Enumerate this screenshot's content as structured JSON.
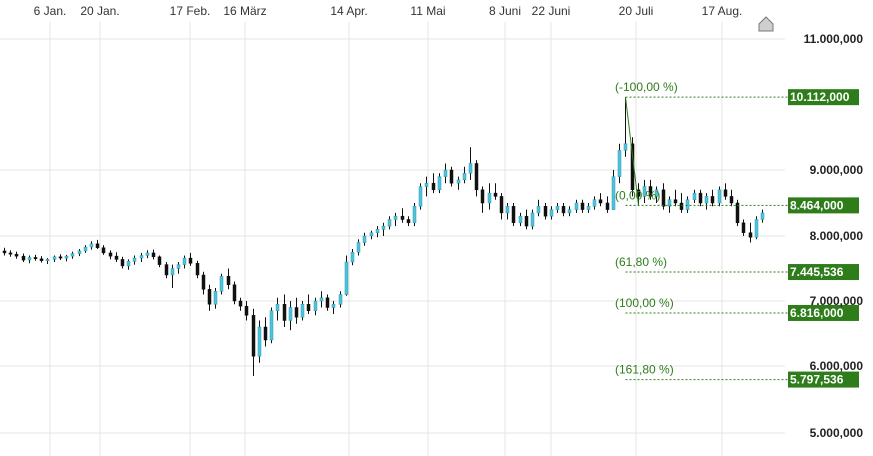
{
  "chart_data": {
    "type": "candlestick",
    "title": "",
    "xlabel": "",
    "ylabel": "",
    "x_tick_labels": [
      "6 Jan.",
      "20 Jan.",
      "17 Feb.",
      "16 März",
      "14 Apr.",
      "11 Mai",
      "8 Juni",
      "22 Juni",
      "20 Juli",
      "17 Aug."
    ],
    "y_tick_labels": [
      "11.000,000",
      "9.000,000",
      "8.000,000",
      "7.000,000",
      "6.000,000",
      "5.000,000"
    ],
    "y_tick_values": [
      11000,
      9000,
      8000,
      7000,
      6000,
      5000
    ],
    "ylim": [
      4850,
      11250
    ],
    "grid": true,
    "colors": {
      "up": "#4fc3dc",
      "down": "#111111",
      "fib": "#2e7d1a",
      "grid": "#e4e4e4"
    },
    "fib_levels": [
      {
        "label": "(-100,00 %)",
        "value_label": "10.112,000",
        "value": 10112
      },
      {
        "label": "(0,00 %)",
        "value_label": "8.464,000",
        "value": 8464
      },
      {
        "label": "(61,80 %)",
        "value_label": "7.445,536",
        "value": 7445.536
      },
      {
        "label": "(100,00 %)",
        "value_label": "6.816,000",
        "value": 6816
      },
      {
        "label": "(161,80 %)",
        "value_label": "5.797,536",
        "value": 5797.536
      }
    ],
    "fib_line": {
      "from": 10112,
      "to": 8464
    },
    "candles": [
      [
        7770,
        7820,
        7700,
        7740
      ],
      [
        7740,
        7780,
        7680,
        7720
      ],
      [
        7720,
        7760,
        7650,
        7690
      ],
      [
        7690,
        7730,
        7600,
        7630
      ],
      [
        7630,
        7700,
        7580,
        7670
      ],
      [
        7670,
        7710,
        7620,
        7650
      ],
      [
        7650,
        7690,
        7590,
        7620
      ],
      [
        7620,
        7660,
        7570,
        7640
      ],
      [
        7640,
        7700,
        7600,
        7680
      ],
      [
        7680,
        7720,
        7630,
        7660
      ],
      [
        7660,
        7710,
        7610,
        7690
      ],
      [
        7690,
        7760,
        7650,
        7730
      ],
      [
        7730,
        7800,
        7690,
        7770
      ],
      [
        7770,
        7860,
        7740,
        7830
      ],
      [
        7830,
        7920,
        7790,
        7880
      ],
      [
        7880,
        7940,
        7800,
        7820
      ],
      [
        7820,
        7860,
        7710,
        7740
      ],
      [
        7740,
        7780,
        7640,
        7690
      ],
      [
        7690,
        7750,
        7600,
        7640
      ],
      [
        7640,
        7680,
        7500,
        7540
      ],
      [
        7540,
        7640,
        7480,
        7610
      ],
      [
        7610,
        7700,
        7560,
        7660
      ],
      [
        7660,
        7740,
        7600,
        7700
      ],
      [
        7700,
        7780,
        7660,
        7740
      ],
      [
        7740,
        7790,
        7640,
        7680
      ],
      [
        7680,
        7700,
        7520,
        7560
      ],
      [
        7560,
        7600,
        7350,
        7400
      ],
      [
        7400,
        7560,
        7200,
        7500
      ],
      [
        7500,
        7600,
        7420,
        7560
      ],
      [
        7560,
        7700,
        7500,
        7660
      ],
      [
        7660,
        7740,
        7540,
        7580
      ],
      [
        7580,
        7620,
        7350,
        7400
      ],
      [
        7400,
        7450,
        7100,
        7180
      ],
      [
        7180,
        7250,
        6850,
        6950
      ],
      [
        6950,
        7200,
        6880,
        7150
      ],
      [
        7150,
        7420,
        7100,
        7380
      ],
      [
        7380,
        7500,
        7180,
        7250
      ],
      [
        7250,
        7300,
        6950,
        7000
      ],
      [
        7000,
        7050,
        6850,
        6920
      ],
      [
        6920,
        7000,
        6700,
        6780
      ],
      [
        6780,
        6880,
        5850,
        6150
      ],
      [
        6150,
        6700,
        6050,
        6600
      ],
      [
        6600,
        6750,
        6300,
        6400
      ],
      [
        6400,
        6900,
        6350,
        6850
      ],
      [
        6850,
        7050,
        6700,
        6950
      ],
      [
        6950,
        7100,
        6600,
        6700
      ],
      [
        6700,
        7000,
        6550,
        6900
      ],
      [
        6900,
        7050,
        6650,
        6750
      ],
      [
        6750,
        7000,
        6700,
        6950
      ],
      [
        6950,
        7100,
        6800,
        6850
      ],
      [
        6850,
        7050,
        6780,
        7000
      ],
      [
        7000,
        7150,
        6900,
        7050
      ],
      [
        7050,
        7100,
        6850,
        6900
      ],
      [
        6900,
        7000,
        6800,
        6950
      ],
      [
        6950,
        7150,
        6900,
        7100
      ],
      [
        7100,
        7700,
        7080,
        7600
      ],
      [
        7600,
        7800,
        7550,
        7750
      ],
      [
        7750,
        7950,
        7700,
        7900
      ],
      [
        7900,
        8050,
        7850,
        8000
      ],
      [
        8000,
        8080,
        7950,
        8050
      ],
      [
        8050,
        8150,
        7980,
        8100
      ],
      [
        8100,
        8200,
        8000,
        8150
      ],
      [
        8150,
        8300,
        8100,
        8250
      ],
      [
        8250,
        8350,
        8150,
        8300
      ],
      [
        8300,
        8420,
        8200,
        8250
      ],
      [
        8250,
        8300,
        8150,
        8200
      ],
      [
        8200,
        8500,
        8150,
        8450
      ],
      [
        8450,
        8800,
        8400,
        8750
      ],
      [
        8750,
        8900,
        8600,
        8800
      ],
      [
        8800,
        8950,
        8650,
        8700
      ],
      [
        8700,
        8950,
        8650,
        8900
      ],
      [
        8900,
        9100,
        8800,
        9000
      ],
      [
        9000,
        9050,
        8750,
        8800
      ],
      [
        8800,
        8900,
        8700,
        8850
      ],
      [
        8850,
        9050,
        8800,
        8950
      ],
      [
        8950,
        9350,
        8850,
        9100
      ],
      [
        9100,
        9150,
        8600,
        8700
      ],
      [
        8700,
        8750,
        8350,
        8500
      ],
      [
        8500,
        8800,
        8400,
        8650
      ],
      [
        8650,
        8800,
        8550,
        8600
      ],
      [
        8600,
        8650,
        8250,
        8350
      ],
      [
        8350,
        8500,
        8250,
        8450
      ],
      [
        8450,
        8500,
        8150,
        8200
      ],
      [
        8200,
        8350,
        8150,
        8300
      ],
      [
        8300,
        8400,
        8100,
        8150
      ],
      [
        8150,
        8400,
        8100,
        8350
      ],
      [
        8350,
        8550,
        8300,
        8450
      ],
      [
        8450,
        8500,
        8250,
        8300
      ],
      [
        8300,
        8450,
        8250,
        8400
      ],
      [
        8400,
        8500,
        8350,
        8450
      ],
      [
        8450,
        8500,
        8300,
        8350
      ],
      [
        8350,
        8450,
        8300,
        8400
      ],
      [
        8400,
        8550,
        8350,
        8500
      ],
      [
        8500,
        8550,
        8350,
        8400
      ],
      [
        8400,
        8500,
        8350,
        8450
      ],
      [
        8450,
        8600,
        8400,
        8550
      ],
      [
        8550,
        8650,
        8450,
        8500
      ],
      [
        8500,
        8600,
        8350,
        8400
      ],
      [
        8400,
        9000,
        8400,
        8900
      ],
      [
        8900,
        9400,
        8800,
        9300
      ],
      [
        9300,
        10112,
        9200,
        9400
      ],
      [
        9400,
        9500,
        8600,
        8700
      ],
      [
        8700,
        8800,
        8464,
        8600
      ],
      [
        8600,
        8850,
        8500,
        8750
      ],
      [
        8750,
        8850,
        8550,
        8600
      ],
      [
        8600,
        8750,
        8500,
        8700
      ],
      [
        8700,
        8800,
        8400,
        8450
      ],
      [
        8450,
        8600,
        8350,
        8550
      ],
      [
        8550,
        8700,
        8450,
        8500
      ],
      [
        8500,
        8650,
        8350,
        8400
      ],
      [
        8400,
        8600,
        8350,
        8550
      ],
      [
        8550,
        8700,
        8500,
        8650
      ],
      [
        8650,
        8700,
        8450,
        8500
      ],
      [
        8500,
        8650,
        8400,
        8600
      ],
      [
        8600,
        8700,
        8450,
        8500
      ],
      [
        8500,
        8750,
        8450,
        8700
      ],
      [
        8700,
        8800,
        8550,
        8600
      ],
      [
        8600,
        8700,
        8450,
        8500
      ],
      [
        8500,
        8550,
        8150,
        8200
      ],
      [
        8200,
        8250,
        8000,
        8050
      ],
      [
        8050,
        8200,
        7900,
        7980
      ],
      [
        7980,
        8300,
        7950,
        8250
      ],
      [
        8250,
        8400,
        8200,
        8350
      ]
    ]
  }
}
